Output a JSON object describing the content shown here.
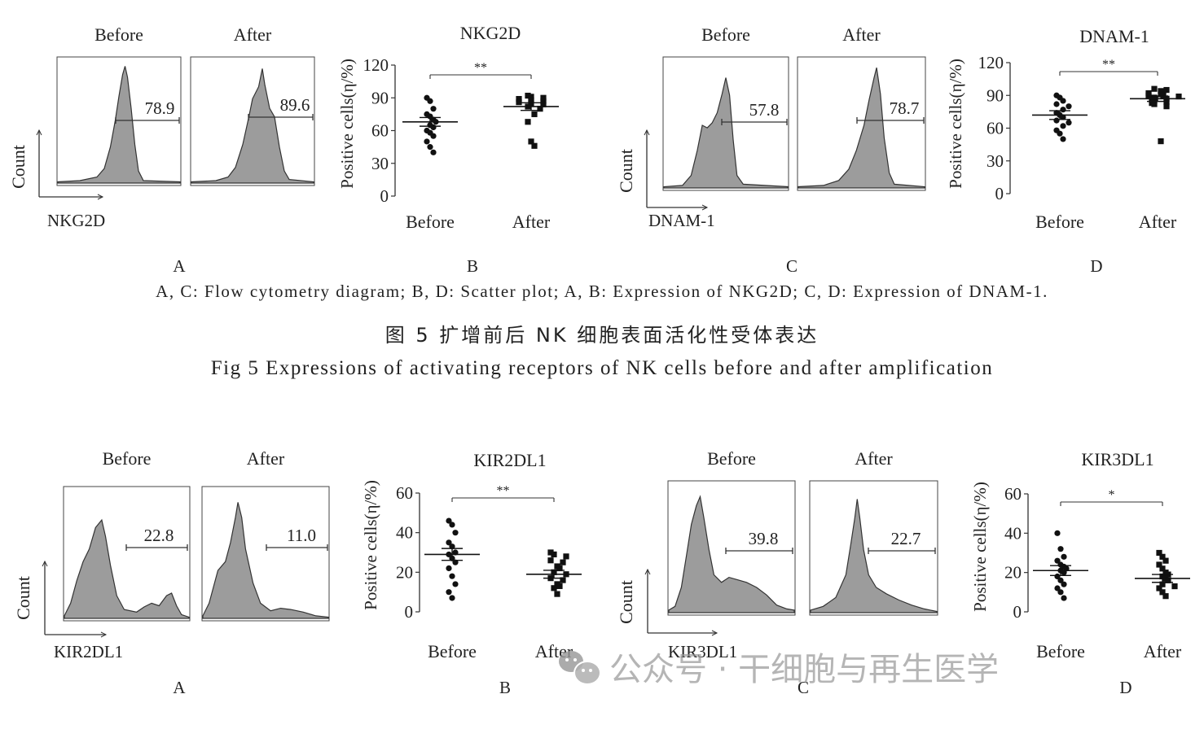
{
  "figure5": {
    "caption_legend": "A, C: Flow cytometry diagram; B, D: Scatter plot; A, B: Expression of NKG2D; C, D: Expression of DNAM-1.",
    "caption_cn": "图 5   扩增前后 NK 细胞表面活化性受体表达",
    "caption_en": "Fig 5    Expressions of activating receptors of NK cells before and after amplification"
  },
  "watermark": {
    "icon": "wechat-icon",
    "text": "公众号 · 干细胞与再生医学"
  },
  "chart_data": [
    {
      "type": "histogram",
      "panel": "A",
      "titles": [
        "Before",
        "After"
      ],
      "xlabel": "NKG2D",
      "ylabel": "Count",
      "gates": [
        "78.9",
        "89.6"
      ],
      "shapes": [
        "nkg2d-before",
        "nkg2d-after"
      ]
    },
    {
      "type": "scatter",
      "panel": "B",
      "title": "NKG2D",
      "ylabel": "Positive cells(η/%)",
      "categories": [
        "Before",
        "After"
      ],
      "yticks": [
        "0",
        "30",
        "60",
        "90",
        "120"
      ],
      "ylim": [
        0,
        120
      ],
      "significance": "**",
      "series": [
        {
          "name": "Before",
          "mean": 68,
          "sem": 4,
          "values": [
            90,
            87,
            80,
            75,
            73,
            70,
            68,
            65,
            63,
            60,
            58,
            55,
            50,
            45,
            40
          ]
        },
        {
          "name": "After",
          "mean": 82,
          "sem": 3.5,
          "values": [
            92,
            91,
            90,
            89,
            88,
            87,
            86,
            85,
            84,
            82,
            80,
            75,
            68,
            50,
            46
          ]
        }
      ]
    },
    {
      "type": "histogram",
      "panel": "C",
      "titles": [
        "Before",
        "After"
      ],
      "xlabel": "DNAM-1",
      "ylabel": "Count",
      "gates": [
        "57.8",
        "78.7"
      ],
      "shapes": [
        "dnam-before",
        "dnam-after"
      ]
    },
    {
      "type": "scatter",
      "panel": "D",
      "title": "DNAM-1",
      "ylabel": "Positive cells(η/%)",
      "categories": [
        "Before",
        "After"
      ],
      "yticks": [
        "0",
        "30",
        "60",
        "90",
        "120"
      ],
      "ylim": [
        0,
        120
      ],
      "significance": "**",
      "series": [
        {
          "name": "Before",
          "mean": 72,
          "sem": 4,
          "values": [
            90,
            88,
            85,
            82,
            80,
            77,
            74,
            72,
            70,
            67,
            65,
            62,
            58,
            55,
            50
          ]
        },
        {
          "name": "After",
          "mean": 87,
          "sem": 2.5,
          "values": [
            96,
            95,
            94,
            93,
            92,
            91,
            90,
            90,
            89,
            88,
            87,
            86,
            85,
            84,
            83,
            82,
            80,
            48
          ]
        }
      ]
    },
    {
      "type": "histogram",
      "panel": "A",
      "titles": [
        "Before",
        "After"
      ],
      "xlabel": "KIR2DL1",
      "ylabel": "Count",
      "gates": [
        "22.8",
        "11.0"
      ],
      "shapes": [
        "kir2-before",
        "kir2-after"
      ]
    },
    {
      "type": "scatter",
      "panel": "B",
      "title": "KIR2DL1",
      "ylabel": "Positive cells(η/%)",
      "categories": [
        "Before",
        "After"
      ],
      "yticks": [
        "0",
        "20",
        "40",
        "60"
      ],
      "ylim": [
        0,
        60
      ],
      "significance": "**",
      "series": [
        {
          "name": "Before",
          "mean": 29,
          "sem": 3,
          "values": [
            46,
            44,
            40,
            35,
            33,
            30,
            29,
            27,
            25,
            22,
            18,
            14,
            10,
            7
          ]
        },
        {
          "name": "After",
          "mean": 19,
          "sem": 2,
          "values": [
            30,
            29,
            28,
            26,
            25,
            23,
            22,
            20,
            19,
            17,
            16,
            14,
            13,
            12,
            9
          ]
        }
      ]
    },
    {
      "type": "histogram",
      "panel": "C",
      "titles": [
        "Before",
        "After"
      ],
      "xlabel": "KIR3DL1",
      "ylabel": "Count",
      "gates": [
        "39.8",
        "22.7"
      ],
      "shapes": [
        "kir3-before",
        "kir3-after"
      ]
    },
    {
      "type": "scatter",
      "panel": "D",
      "title": "KIR3DL1",
      "ylabel": "Positive cells(η/%)",
      "categories": [
        "Before",
        "After"
      ],
      "yticks": [
        "0",
        "20",
        "40",
        "60"
      ],
      "ylim": [
        0,
        60
      ],
      "significance": "*",
      "series": [
        {
          "name": "Before",
          "mean": 21,
          "sem": 2.5,
          "values": [
            40,
            32,
            28,
            26,
            24,
            23,
            22,
            21,
            20,
            18,
            16,
            14,
            12,
            10,
            7
          ]
        },
        {
          "name": "After",
          "mean": 17,
          "sem": 2,
          "values": [
            30,
            28,
            26,
            24,
            22,
            20,
            19,
            18,
            17,
            16,
            14,
            13,
            12,
            10,
            8
          ]
        }
      ]
    }
  ]
}
